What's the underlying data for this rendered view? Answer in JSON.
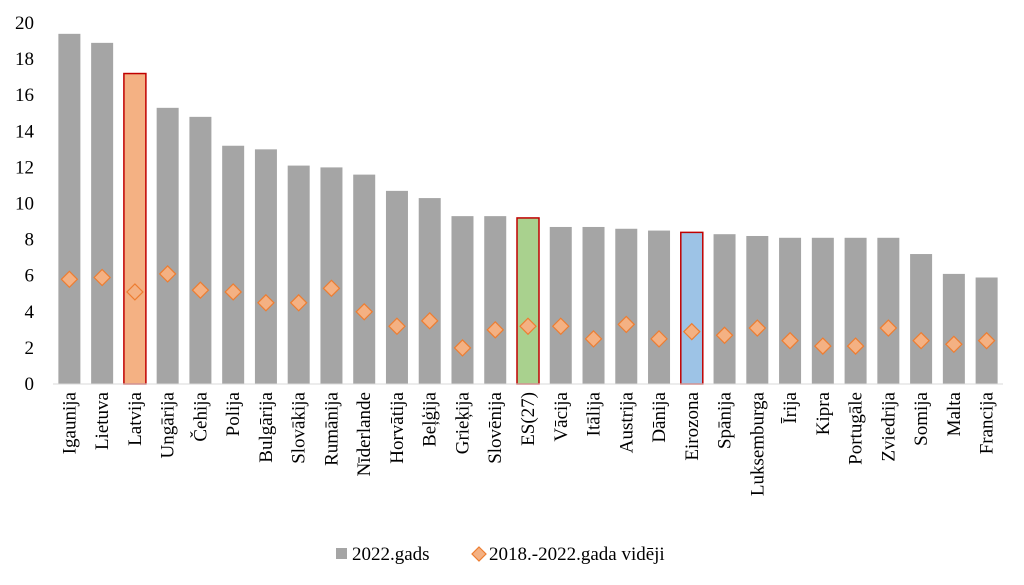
{
  "chart_data": {
    "type": "bar",
    "categories": [
      "Igaunija",
      "Lietuva",
      "Latvija",
      "Ungārija",
      "Čehija",
      "Polija",
      "Bulgārija",
      "Slovākija",
      "Rumānija",
      "Nīderlande",
      "Horvātija",
      "Beļģija",
      "Grieķija",
      "Slovēnija",
      "ES(27)",
      "Vācija",
      "Itālija",
      "Austrija",
      "Dānija",
      "Eirozona",
      "Spānija",
      "Luksemburga",
      "Īrija",
      "Kipra",
      "Portugāle",
      "Zviedrija",
      "Somija",
      "Malta",
      "Francija"
    ],
    "series": [
      {
        "name": "2022.gads",
        "kind": "bar",
        "color": "#a5a5a5",
        "values": [
          19.4,
          18.9,
          17.2,
          15.3,
          14.8,
          13.2,
          13.0,
          12.1,
          12.0,
          11.6,
          10.7,
          10.3,
          9.3,
          9.3,
          9.2,
          8.7,
          8.7,
          8.6,
          8.5,
          8.4,
          8.3,
          8.2,
          8.1,
          8.1,
          8.1,
          8.1,
          7.2,
          6.1,
          5.9
        ]
      },
      {
        "name": "2018.-2022.gada vidēji",
        "kind": "marker",
        "color": "#f4b183",
        "stroke": "#ed7d31",
        "values": [
          5.8,
          5.9,
          5.1,
          6.1,
          5.2,
          5.1,
          4.5,
          4.5,
          5.3,
          4.0,
          3.2,
          3.5,
          2.0,
          3.0,
          3.2,
          3.2,
          2.5,
          3.3,
          2.5,
          2.9,
          2.7,
          3.1,
          2.4,
          2.1,
          2.1,
          3.1,
          2.4,
          2.2,
          2.4
        ]
      }
    ],
    "highlights": [
      {
        "category": "Latvija",
        "fill": "#f4b183",
        "stroke": "#c00000"
      },
      {
        "category": "ES(27)",
        "fill": "#a9d18e",
        "stroke": "#c00000"
      },
      {
        "category": "Eirozona",
        "fill": "#9dc3e6",
        "stroke": "#c00000"
      }
    ],
    "ylim": [
      0,
      20
    ],
    "yticks": [
      0,
      2,
      4,
      6,
      8,
      10,
      12,
      14,
      16,
      18,
      20
    ],
    "grid": false,
    "legend_position": "bottom"
  }
}
